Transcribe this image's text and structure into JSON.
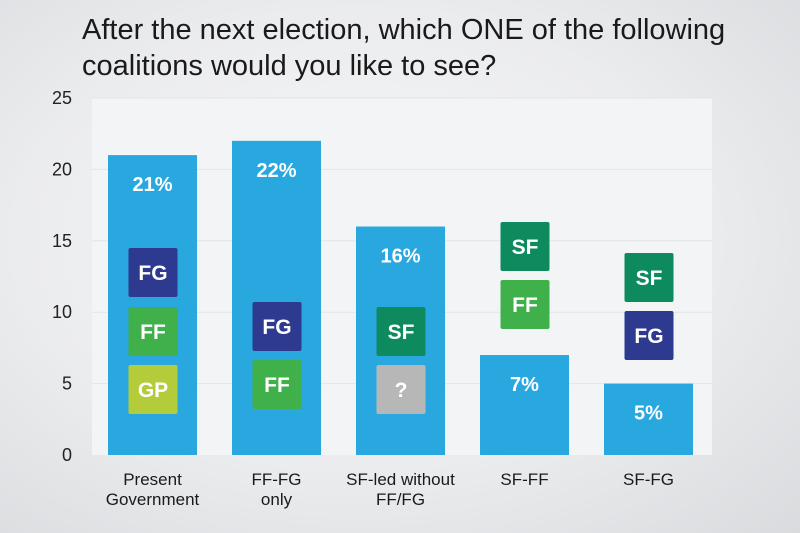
{
  "chart_data": {
    "type": "bar",
    "title": "After the next election, which ONE of the following coalitions  would you like to see?",
    "categories": [
      [
        "Present",
        "Government"
      ],
      [
        "FF-FG",
        "only"
      ],
      [
        "SF-led without",
        "FF/FG"
      ],
      [
        "SF-FF"
      ],
      [
        "SF-FG"
      ]
    ],
    "values": [
      21,
      22,
      16,
      7,
      5
    ],
    "value_labels": [
      "21%",
      "22%",
      "16%",
      "7%",
      "5%"
    ],
    "ylim": [
      0,
      25
    ],
    "yticks": [
      0,
      5,
      10,
      15,
      20,
      25
    ],
    "grid": true,
    "bar_color": "#29a8e0",
    "party_badges": [
      [
        "FG",
        "FF",
        "GP"
      ],
      [
        "FG",
        "FF"
      ],
      [
        "SF",
        "?"
      ],
      [
        "SF",
        "FF"
      ],
      [
        "SF",
        "FG"
      ]
    ],
    "party_colors": {
      "FG": "#2e3a8f",
      "FF": "#3fb04a",
      "GP": "#b5cc3a",
      "SF": "#0e8a5f",
      "?": "#b7b7b7"
    }
  }
}
